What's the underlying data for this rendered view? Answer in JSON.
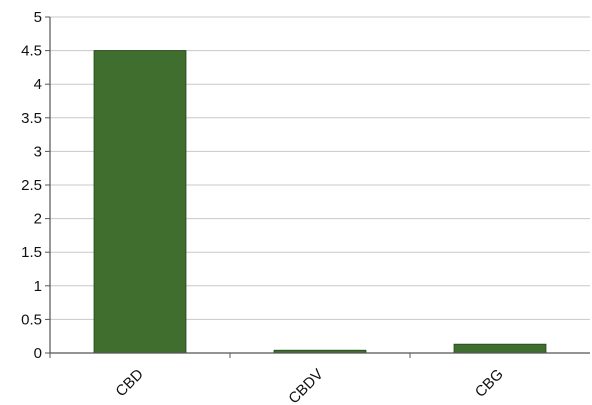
{
  "chart_data": {
    "type": "bar",
    "categories": [
      "CBD",
      "CBDV",
      "CBG"
    ],
    "values": [
      4.5,
      0.04,
      0.13
    ],
    "yticks": [
      "0",
      "0.5",
      "1",
      "1.5",
      "2",
      "2.5",
      "3",
      "3.5",
      "4",
      "4.5",
      "5"
    ],
    "ylim": [
      0,
      5
    ],
    "grid": true,
    "bar_color": "#3f6e2e",
    "bar_edge_color": "#2b4f1f",
    "grid_color": "#c8c8c8",
    "axis_color": "#555555"
  }
}
